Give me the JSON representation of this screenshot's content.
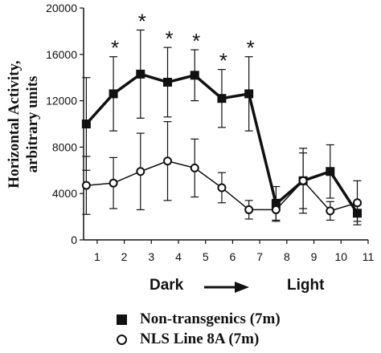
{
  "chart_data": {
    "type": "line",
    "title": "",
    "ylabel": [
      "Horizontal Activity,",
      "arbitrary units"
    ],
    "xlabel_left": "Dark",
    "xlabel_right": "Light",
    "xlim": [
      0.5,
      11
    ],
    "ylim": [
      0,
      20000
    ],
    "x_ticks": [
      1,
      2,
      3,
      4,
      5,
      6,
      7,
      8,
      9,
      10,
      11
    ],
    "y_ticks": [
      0,
      4000,
      8000,
      12000,
      16000,
      20000
    ],
    "y_tick_labels": [
      "0",
      "4000",
      "8000",
      "12000",
      "16000",
      "20000"
    ],
    "x": [
      0.6,
      1.6,
      2.6,
      3.6,
      4.6,
      5.6,
      6.6,
      7.6,
      8.6,
      9.6,
      10.6
    ],
    "series": [
      {
        "name": "Non-transgenics (7m)",
        "marker": "square-filled",
        "values": [
          10000,
          12600,
          14300,
          13600,
          14200,
          12200,
          12600,
          3100,
          5100,
          5900,
          2300
        ],
        "errors": [
          4000,
          3200,
          3800,
          3000,
          2200,
          2500,
          3200,
          1500,
          2800,
          2300,
          700
        ]
      },
      {
        "name": "NLS Line 8A (7m)",
        "marker": "circle-open",
        "values": [
          4700,
          4900,
          5900,
          6800,
          6200,
          4500,
          2600,
          2600,
          5100,
          2500,
          3200
        ],
        "errors": [
          2500,
          2200,
          3300,
          3400,
          2500,
          1300,
          800,
          900,
          2400,
          800,
          1900
        ]
      }
    ],
    "significance": {
      "symbol": "*",
      "x": [
        1.6,
        2.6,
        3.6,
        4.6,
        5.6,
        6.6
      ]
    },
    "colors": {
      "line": "#111111",
      "marker_fill_open": "#ffffff"
    },
    "grid": false,
    "legend": "bottom"
  }
}
